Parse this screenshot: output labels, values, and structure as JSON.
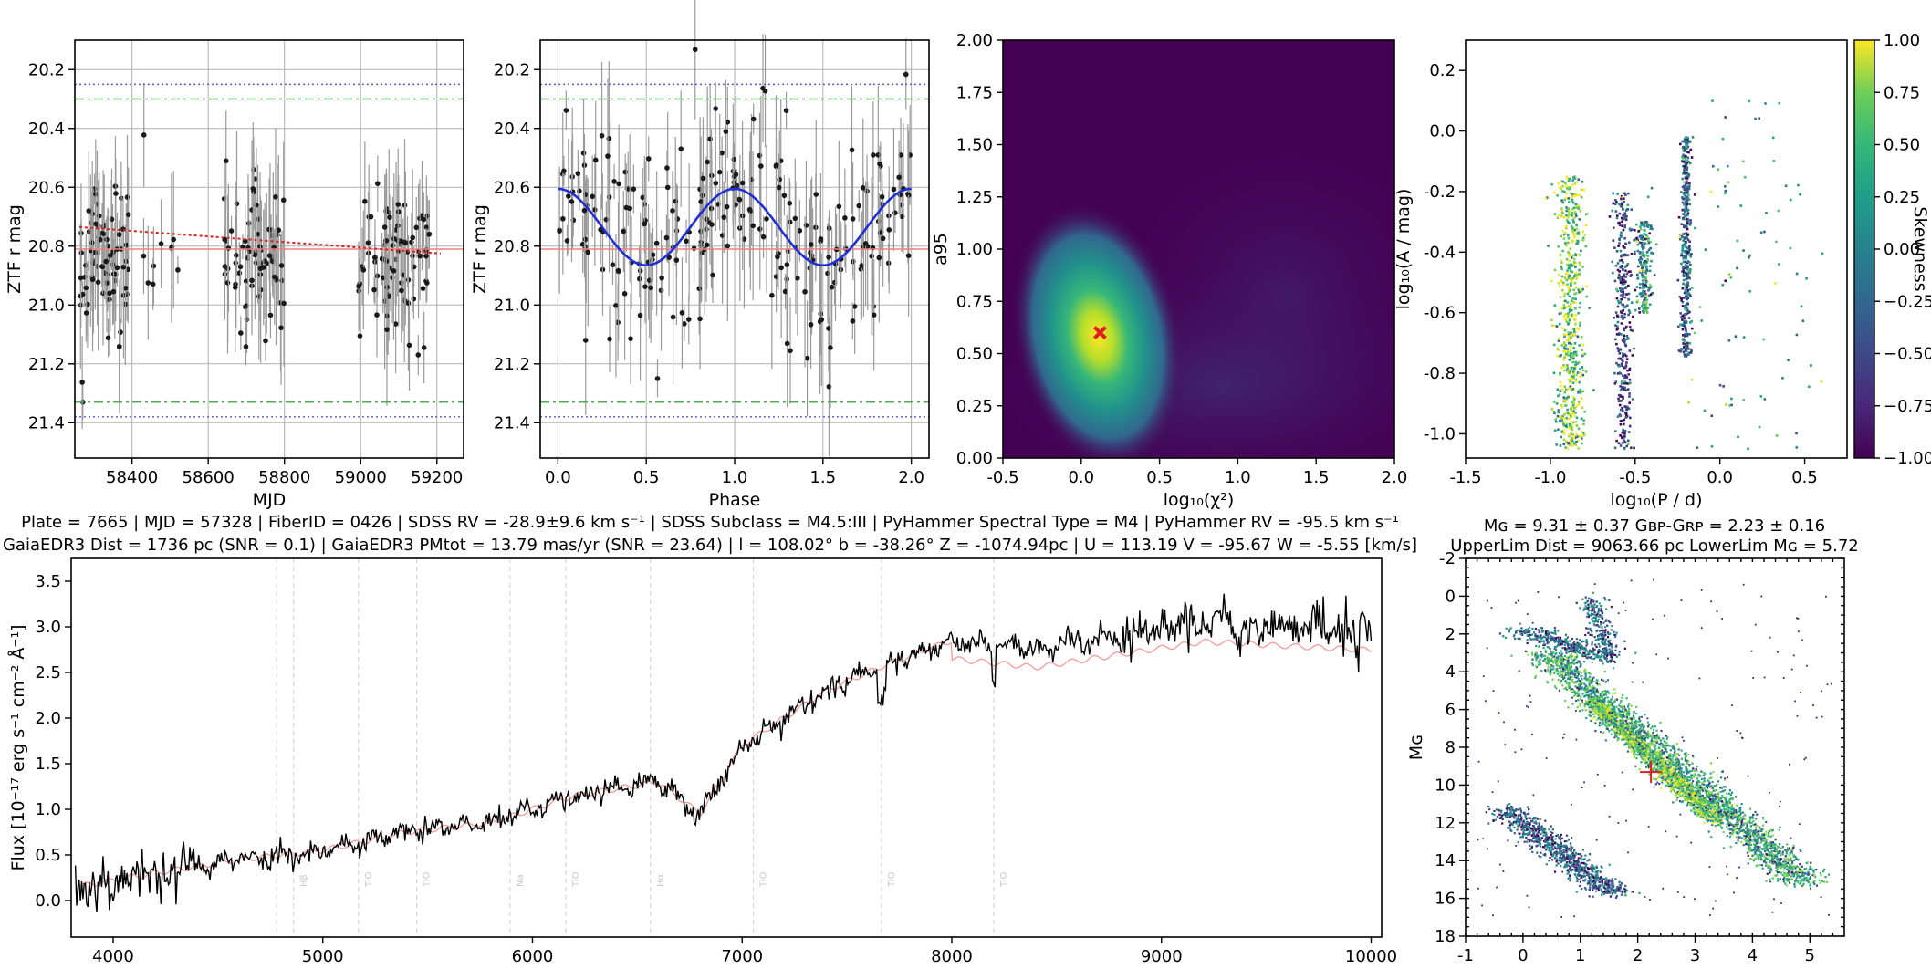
{
  "colors": {
    "model": "#1f2fd8",
    "trend": "#e02020",
    "median": "#f08080",
    "dash_green": "#55aa55",
    "dot_blue": "#5b5bd6",
    "spectrum": "#000000",
    "template": "#f2a0a0",
    "marker": "#e02020"
  },
  "chart_data": [
    {
      "id": "lightcurve",
      "type": "scatter",
      "xlabel": "MJD",
      "ylabel": "ZTF r mag",
      "xlim": [
        58250,
        59270
      ],
      "ylim": [
        21.52,
        20.1
      ],
      "xticks": [
        58400,
        58600,
        58800,
        59000,
        59200
      ],
      "yticks": [
        20.2,
        20.4,
        20.6,
        20.8,
        21.0,
        21.2,
        21.4
      ],
      "grid": true,
      "seasons": [
        {
          "x_range": [
            58262,
            58392
          ],
          "n": 80
        },
        {
          "x_range": [
            58420,
            58540
          ],
          "n": 10
        },
        {
          "x_range": [
            58640,
            58800
          ],
          "n": 75
        },
        {
          "x_range": [
            58990,
            59180
          ],
          "n": 85
        }
      ],
      "mag_center": 20.85,
      "mag_spread": 0.18,
      "trend_line": {
        "x": [
          58262,
          59210
        ],
        "y": [
          20.735,
          20.825
        ]
      },
      "median_line": 20.81,
      "green_lines": [
        20.3,
        21.33
      ],
      "blue_lines": [
        20.25,
        21.38
      ]
    },
    {
      "id": "phased",
      "type": "scatter",
      "xlabel": "Phase",
      "ylabel": "ZTF r mag",
      "xlim": [
        -0.1,
        2.1
      ],
      "ylim": [
        21.52,
        20.1
      ],
      "xticks": [
        0.0,
        0.5,
        1.0,
        1.5,
        2.0
      ],
      "yticks": [
        20.2,
        20.4,
        20.6,
        20.8,
        21.0,
        21.2,
        21.4
      ],
      "grid": true,
      "n_points": 250,
      "model": {
        "mean": 20.735,
        "amplitude": 0.13,
        "min_phase": 0.5
      },
      "median_line": 20.81,
      "green_lines": [
        20.3,
        21.33
      ],
      "blue_lines": [
        20.25,
        21.38
      ]
    },
    {
      "id": "density",
      "type": "heatmap",
      "xlabel": "log₁₀(χ²)",
      "ylabel": "a95",
      "xlim": [
        -0.5,
        2.0
      ],
      "ylim": [
        0.0,
        2.0
      ],
      "xticks": [
        -0.5,
        0.0,
        0.5,
        1.0,
        1.5,
        2.0
      ],
      "yticks": [
        0.0,
        0.25,
        0.5,
        0.75,
        1.0,
        1.25,
        1.5,
        1.75,
        2.0
      ],
      "peak": {
        "x": 0.1,
        "y": 0.6
      },
      "marker": {
        "x": 0.12,
        "y": 0.6
      }
    },
    {
      "id": "period_amp",
      "type": "scatter",
      "xlabel": "log₁₀(P / d)",
      "ylabel": "log₁₀(A / mag)",
      "xlim": [
        -1.5,
        0.75
      ],
      "ylim": [
        -1.08,
        0.3
      ],
      "xticks": [
        -1.5,
        -1.0,
        -0.5,
        0.0,
        0.5
      ],
      "yticks": [
        0.2,
        0.0,
        -0.2,
        -0.4,
        -0.6,
        -0.8,
        -1.0
      ],
      "colorbar": {
        "label": "Skewness",
        "range": [
          -1.0,
          1.0
        ],
        "ticks": [
          "1.00",
          "0.75",
          "0.50",
          "0.25",
          "0.00",
          "−0.25",
          "−0.50",
          "−0.75",
          "−1.00"
        ]
      },
      "clusters": [
        {
          "x_center": -0.88,
          "x_width": 0.09,
          "y_range": [
            -1.05,
            -0.15
          ],
          "skew_center": 0.55,
          "n": 600
        },
        {
          "x_center": -0.57,
          "x_width": 0.05,
          "y_range": [
            -1.05,
            -0.2
          ],
          "skew_center": -0.6,
          "n": 350
        },
        {
          "x_center": -0.45,
          "x_width": 0.05,
          "y_range": [
            -0.6,
            -0.3
          ],
          "skew_center": -0.1,
          "n": 200
        },
        {
          "x_center": -0.2,
          "x_width": 0.03,
          "y_range": [
            -0.75,
            -0.02
          ],
          "skew_center": -0.4,
          "n": 400
        },
        {
          "x_center": 0.15,
          "x_width": 0.45,
          "y_range": [
            -1.05,
            0.1
          ],
          "skew_center": 0.0,
          "n": 90
        }
      ]
    },
    {
      "id": "spectrum",
      "type": "line",
      "xlabel": "",
      "ylabel": "Flux [10⁻¹⁷ erg s⁻¹ cm⁻² Å⁻¹]",
      "xlim": [
        3800,
        10050
      ],
      "ylim": [
        -0.4,
        3.75
      ],
      "xticks": [
        4000,
        5000,
        6000,
        7000,
        8000,
        9000,
        10000
      ],
      "yticks": [
        0.0,
        0.5,
        1.0,
        1.5,
        2.0,
        2.5,
        3.0,
        3.5
      ],
      "continuum": [
        {
          "x": 3820,
          "y": 0.15
        },
        {
          "x": 4200,
          "y": 0.3
        },
        {
          "x": 4600,
          "y": 0.45
        },
        {
          "x": 5000,
          "y": 0.55
        },
        {
          "x": 5400,
          "y": 0.75
        },
        {
          "x": 5800,
          "y": 0.85
        },
        {
          "x": 6200,
          "y": 1.15
        },
        {
          "x": 6600,
          "y": 1.3
        },
        {
          "x": 6800,
          "y": 0.95
        },
        {
          "x": 7000,
          "y": 1.7
        },
        {
          "x": 7400,
          "y": 2.3
        },
        {
          "x": 7700,
          "y": 2.6
        },
        {
          "x": 8000,
          "y": 2.85
        },
        {
          "x": 8400,
          "y": 2.75
        },
        {
          "x": 8800,
          "y": 2.9
        },
        {
          "x": 9200,
          "y": 3.05
        },
        {
          "x": 9600,
          "y": 3.0
        },
        {
          "x": 10000,
          "y": 2.95
        }
      ],
      "lines": [
        {
          "x": 4780,
          "label": ""
        },
        {
          "x": 4861,
          "label": "Hβ"
        },
        {
          "x": 5170,
          "label": "TiO"
        },
        {
          "x": 5448,
          "label": "TiO"
        },
        {
          "x": 5893,
          "label": "Na"
        },
        {
          "x": 6159,
          "label": "TiO"
        },
        {
          "x": 6563,
          "label": "Hα"
        },
        {
          "x": 7054,
          "label": "TiO"
        },
        {
          "x": 7665,
          "label": "TiO"
        },
        {
          "x": 8200,
          "label": "TiO"
        }
      ]
    },
    {
      "id": "cmd",
      "type": "heatmap",
      "xlabel": "Gʙᴘ − Gʀᴘ",
      "ylabel": "Mɢ",
      "xlim": [
        -1.0,
        5.6
      ],
      "ylim": [
        18,
        -2
      ],
      "xticks": [
        -1,
        0,
        1,
        2,
        3,
        4,
        5
      ],
      "yticks": [
        -2,
        0,
        2,
        4,
        6,
        8,
        10,
        12,
        14,
        16,
        18
      ],
      "target": {
        "x": 2.23,
        "y": 9.31
      }
    }
  ],
  "spectrum_title": {
    "line1": "Plate = 7665 | MJD = 57328 | FiberID = 0426 | SDSS RV = -28.9±9.6 km s⁻¹ | SDSS Subclass = M4.5:III | PyHammer Spectral Type = M4 | PyHammer RV = -95.5 km s⁻¹",
    "line2": "GaiaEDR3 Dist = 1736 pc (SNR = 0.1) | GaiaEDR3 PMtot = 13.79 mas/yr (SNR = 23.64) | l = 108.02° b = -38.26° Z = -1074.94pc | U = 113.19 V = -95.67 W = -5.55 [km/s]"
  },
  "cmd_title": {
    "line1": "Mɢ = 9.31 ± 0.37 Gʙᴘ-Gʀᴘ = 2.23 ± 0.16",
    "line2": "UpperLim Dist = 9063.66 pc LowerLim Mɢ = 5.72"
  }
}
